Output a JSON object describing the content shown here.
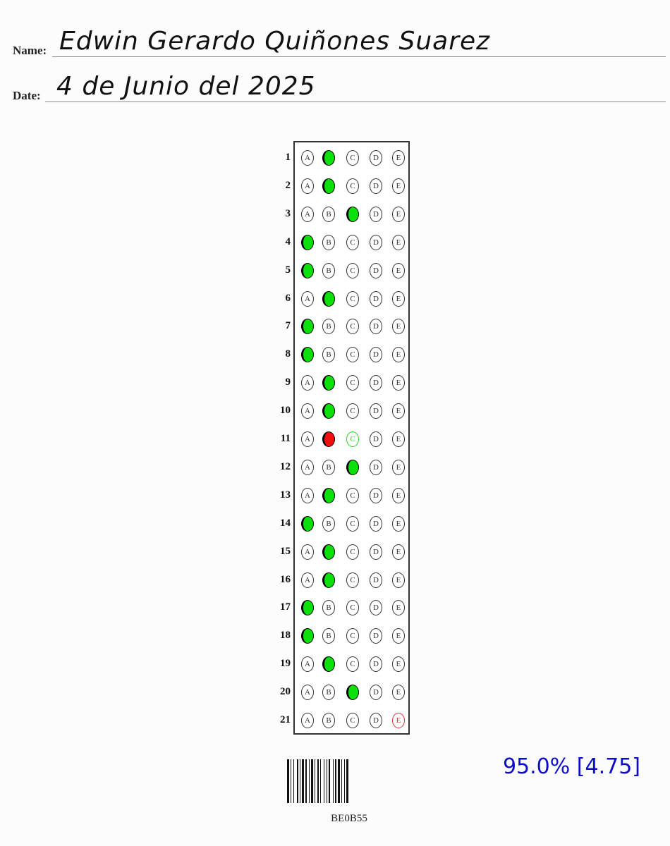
{
  "header": {
    "name_label": "Name:",
    "name_value": "Edwin Gerardo Quiñones Suarez",
    "date_label": "Date:",
    "date_value": "4 de Junio del 2025"
  },
  "options": [
    "A",
    "B",
    "C",
    "D",
    "E"
  ],
  "questions": [
    {
      "number": "1",
      "marked": "B",
      "correct": "B"
    },
    {
      "number": "2",
      "marked": "B",
      "correct": "B"
    },
    {
      "number": "3",
      "marked": "C",
      "correct": "C"
    },
    {
      "number": "4",
      "marked": "A",
      "correct": "A"
    },
    {
      "number": "5",
      "marked": "A",
      "correct": "A"
    },
    {
      "number": "6",
      "marked": "B",
      "correct": "B"
    },
    {
      "number": "7",
      "marked": "A",
      "correct": "A"
    },
    {
      "number": "8",
      "marked": "A",
      "correct": "A"
    },
    {
      "number": "9",
      "marked": "B",
      "correct": "B"
    },
    {
      "number": "10",
      "marked": "B",
      "correct": "B"
    },
    {
      "number": "11",
      "marked": "B",
      "correct": "C"
    },
    {
      "number": "12",
      "marked": "C",
      "correct": "C"
    },
    {
      "number": "13",
      "marked": "B",
      "correct": "B"
    },
    {
      "number": "14",
      "marked": "A",
      "correct": "A"
    },
    {
      "number": "15",
      "marked": "B",
      "correct": "B"
    },
    {
      "number": "16",
      "marked": "B",
      "correct": "B"
    },
    {
      "number": "17",
      "marked": "A",
      "correct": "A"
    },
    {
      "number": "18",
      "marked": "A",
      "correct": "A"
    },
    {
      "number": "19",
      "marked": "B",
      "correct": "B"
    },
    {
      "number": "20",
      "marked": "C",
      "correct": "C"
    },
    {
      "number": "21",
      "marked": "",
      "correct": "",
      "flagged": "E"
    }
  ],
  "barcode_text": "BE0B55",
  "score": "95.0% [4.75]",
  "colors": {
    "correct_fill": "#0be00b",
    "wrong_fill": "#f01010",
    "answer_key_outline": "#22d622",
    "flag_outline": "#e03030",
    "score_text": "#0b0bd0"
  }
}
